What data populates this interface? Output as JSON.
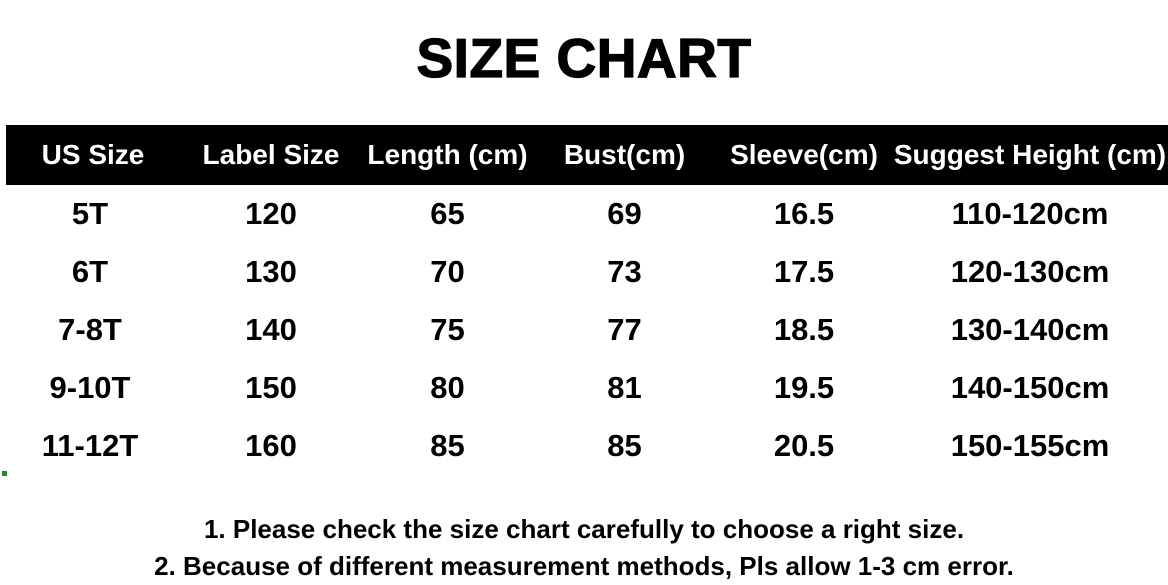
{
  "page_title": "SIZE CHART",
  "chart_data": {
    "type": "table",
    "title": "SIZE CHART",
    "columns": [
      "US Size",
      "Label Size",
      "Length (cm)",
      "Bust(cm)",
      "Sleeve(cm)",
      "Suggest Height (cm)"
    ],
    "rows": [
      [
        "5T",
        "120",
        "65",
        "69",
        "16.5",
        "110-120cm"
      ],
      [
        "6T",
        "130",
        "70",
        "73",
        "17.5",
        "120-130cm"
      ],
      [
        "7-8T",
        "140",
        "75",
        "77",
        "18.5",
        "130-140cm"
      ],
      [
        "9-10T",
        "150",
        "80",
        "81",
        "19.5",
        "140-150cm"
      ],
      [
        "11-12T",
        "160",
        "85",
        "85",
        "20.5",
        "150-155cm"
      ]
    ],
    "notes": [
      "1. Please check the size chart carefully to choose a right size.",
      "2. Because of different measurement methods, Pls allow 1-3 cm error."
    ]
  },
  "colors": {
    "background": "#ffffff",
    "header_bg": "#000000",
    "header_text": "#ffffff",
    "body_text": "#000000"
  }
}
